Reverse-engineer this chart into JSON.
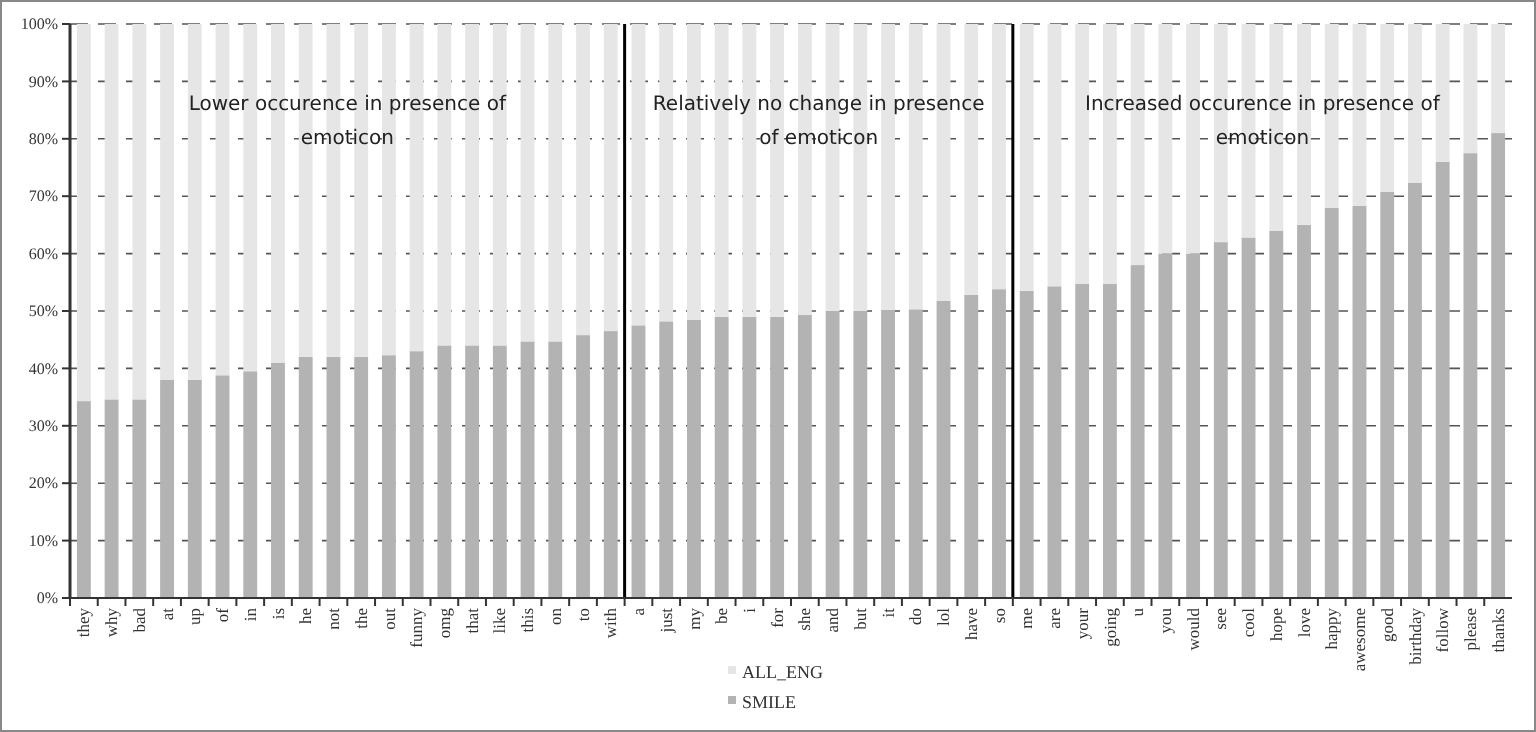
{
  "chart_data": {
    "type": "bar",
    "stacked": true,
    "categories": [
      "they",
      "why",
      "bad",
      "at",
      "up",
      "of",
      "in",
      "is",
      "he",
      "not",
      "the",
      "out",
      "funny",
      "omg",
      "that",
      "like",
      "this",
      "on",
      "to",
      "with",
      "a",
      "just",
      "my",
      "be",
      "i",
      "for",
      "she",
      "and",
      "but",
      "it",
      "do",
      "lol",
      "have",
      "so",
      "me",
      "are",
      "your",
      "going",
      "u",
      "you",
      "would",
      "see",
      "cool",
      "hope",
      "love",
      "happy",
      "awesome",
      "good",
      "birthday",
      "follow",
      "please",
      "thanks"
    ],
    "series": [
      {
        "name": "SMILE",
        "color": "#b3b3b3",
        "values": [
          34.3,
          34.6,
          34.6,
          38,
          38,
          38.8,
          39.5,
          41,
          42,
          42,
          42,
          42.3,
          43,
          44,
          44,
          44,
          44.7,
          44.7,
          45.8,
          46.5,
          47.5,
          48.2,
          48.5,
          49,
          49,
          49,
          49.3,
          50,
          50,
          50.2,
          50.3,
          51.8,
          52.8,
          53.8,
          53.5,
          54.3,
          54.7,
          54.7,
          58,
          60,
          60,
          62,
          62.8,
          64,
          65,
          68,
          68.3,
          70.8,
          72.3,
          76,
          77.5,
          81
        ]
      },
      {
        "name": "ALL_ENG",
        "color": "#e6e6e6",
        "values": [
          65.7,
          65.4,
          65.4,
          62,
          62,
          61.2,
          60.5,
          59,
          58,
          58,
          58,
          57.7,
          57,
          56,
          56,
          56,
          55.3,
          55.3,
          54.2,
          53.5,
          52.5,
          51.8,
          51.5,
          51,
          51,
          51,
          50.7,
          50,
          50,
          49.8,
          49.7,
          48.2,
          47.2,
          46.2,
          46.5,
          45.7,
          45.3,
          45.3,
          42,
          40,
          40,
          38,
          37.2,
          36,
          35,
          32,
          31.7,
          29.2,
          27.7,
          24,
          22.5,
          19
        ]
      }
    ],
    "ylim": [
      0,
      100
    ],
    "yticks": [
      {
        "value": 0,
        "label": "0%"
      },
      {
        "value": 10,
        "label": "10%"
      },
      {
        "value": 20,
        "label": "20%"
      },
      {
        "value": 30,
        "label": "30%"
      },
      {
        "value": 40,
        "label": "40%"
      },
      {
        "value": 50,
        "label": "50%"
      },
      {
        "value": 60,
        "label": "60%"
      },
      {
        "value": 70,
        "label": "70%"
      },
      {
        "value": 80,
        "label": "80%"
      },
      {
        "value": 90,
        "label": "90%"
      },
      {
        "value": 100,
        "label": "100%"
      }
    ],
    "grid": "y",
    "legend": "bottom",
    "annotations": [
      "Lower occurence in presence of emoticon",
      "Relatively no change in presence of emoticon",
      "Increased occurence in presence of emoticon"
    ]
  }
}
